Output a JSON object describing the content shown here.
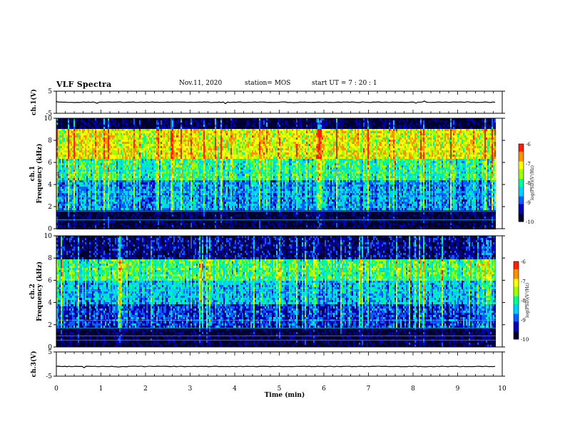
{
  "header": {
    "title": "VLF Spectra",
    "date": "Nov.11, 2020",
    "station": "station= MOS",
    "start": "start  UT =   7 : 20 : 1"
  },
  "chart_data": {
    "type": "heatmap",
    "xlabel": "Time (min)",
    "xlim": [
      0,
      10
    ],
    "xticks": [
      "0",
      "1",
      "2",
      "3",
      "4",
      "5",
      "6",
      "7",
      "8",
      "9",
      "10"
    ],
    "colors": {
      "scale": [
        "#000030",
        "#0000b0",
        "#0060ff",
        "#00d0ff",
        "#00ff90",
        "#a0ff00",
        "#ffff00",
        "#ff9000",
        "#ff2000",
        "#ffffff"
      ]
    },
    "panels": [
      {
        "name": "ch1-waveform",
        "ylabel": "ch.1(V)",
        "ylim": [
          -5,
          5
        ],
        "yticks": [
          "5",
          "-5"
        ],
        "baseline": 0
      },
      {
        "name": "ch1-spectrogram",
        "ylabel": "ch.1\nFrequency (kHz)",
        "ylabel_top": "ch.1",
        "ylabel_bottom": "Frequency (kHz)",
        "ylim": [
          0,
          10
        ],
        "yticks": [
          "0",
          "2",
          "4",
          "6",
          "8",
          "10"
        ],
        "colorbar": {
          "label": "log(PSD)(V²/Hz)",
          "ticks": [
            "-6",
            "-7",
            "-8",
            "-9",
            "-10"
          ],
          "range": [
            -10,
            -6
          ]
        },
        "bands": [
          {
            "from": 0,
            "to": 1.8,
            "level": -9.8
          },
          {
            "from": 1.8,
            "to": 4.5,
            "level": -8.6
          },
          {
            "from": 4.5,
            "to": 6.5,
            "level": -7.9
          },
          {
            "from": 6.5,
            "to": 9.1,
            "level": -7.1
          },
          {
            "from": 9.1,
            "to": 10,
            "level": -9.7
          }
        ]
      },
      {
        "name": "ch2-spectrogram",
        "ylabel": "ch.2\nFrequency (kHz)",
        "ylabel_top": "ch.2",
        "ylabel_bottom": "Frequency (kHz)",
        "ylim": [
          0,
          10
        ],
        "yticks": [
          "0",
          "2",
          "4",
          "6",
          "8",
          "10"
        ],
        "colorbar": {
          "label": "log(PSD)(V²/Hz)",
          "ticks": [
            "-6",
            "-7",
            "-8",
            "-9",
            "-10"
          ],
          "range": [
            -10,
            -6
          ]
        },
        "bands": [
          {
            "from": 0,
            "to": 1.8,
            "level": -9.8
          },
          {
            "from": 1.8,
            "to": 4.0,
            "level": -9.0
          },
          {
            "from": 4.0,
            "to": 6.0,
            "level": -8.4
          },
          {
            "from": 6.0,
            "to": 8.0,
            "level": -7.8
          },
          {
            "from": 8.0,
            "to": 10,
            "level": -9.4
          }
        ]
      },
      {
        "name": "ch3-waveform",
        "ylabel": "ch.3(V)",
        "ylim": [
          -5,
          5
        ],
        "yticks": [
          "5",
          "-5"
        ],
        "baseline": -1
      }
    ]
  }
}
